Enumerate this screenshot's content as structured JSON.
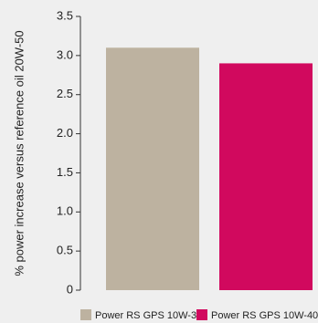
{
  "chart_data": {
    "type": "bar",
    "categories": [
      "Power RS GPS 10W-30",
      "Power RS GPS 10W-40"
    ],
    "values": [
      3.1,
      2.9
    ],
    "colors": [
      "#bdb2a0",
      "#d1095e"
    ],
    "y_label": "% power increase versus reference oil 20W-50",
    "ylim": [
      0,
      3.5
    ],
    "yticks": [
      0,
      0.5,
      {
        "value": 1,
        "label": "1.0"
      },
      1.5,
      {
        "value": 2,
        "label": "2.0"
      },
      2.5,
      {
        "value": 3,
        "label": "3.0"
      },
      3.5
    ],
    "grid": false
  }
}
